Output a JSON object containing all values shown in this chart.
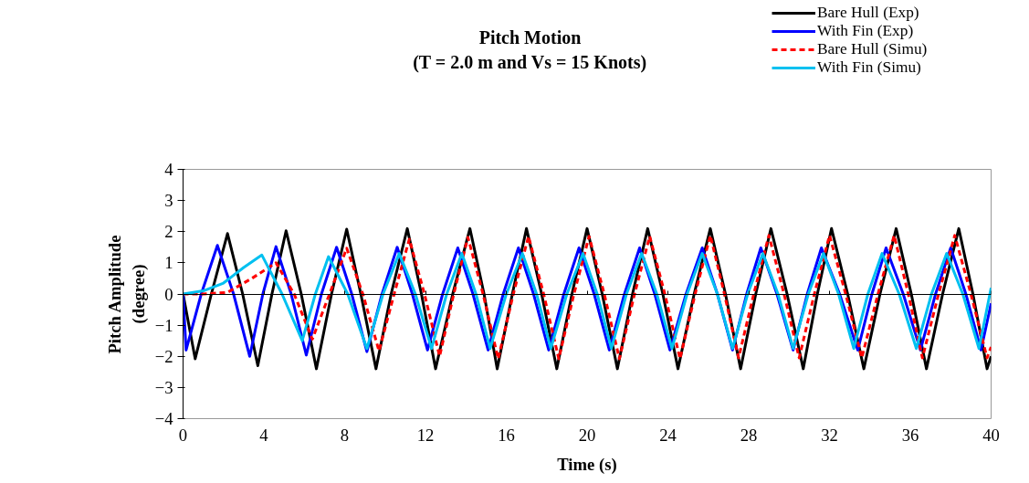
{
  "chart_data": {
    "type": "line",
    "title": "Pitch Motion",
    "subtitle": "(T = 2.0 m and Vs = 15 Knots)",
    "xlabel": "Time (s)",
    "ylabel": "Pitch Amplitude (degree)",
    "xlim": [
      0,
      40
    ],
    "xticks": [
      0,
      4,
      8,
      12,
      16,
      20,
      24,
      28,
      32,
      36,
      40
    ],
    "ylim": [
      -4,
      4
    ],
    "yticks": [
      -4,
      -3,
      -2,
      -1,
      0,
      1,
      2,
      3,
      4
    ],
    "legend": "top right",
    "line_style": "solid",
    "marker": "none",
    "series": [
      {
        "name": "Bare Hull (Exp)",
        "color": "#000000",
        "x": [
          0,
          0.6,
          1.4,
          2.2,
          2.95,
          3.7,
          4.4,
          5.1,
          5.85,
          6.6,
          7.35,
          8.1,
          8.8,
          9.55,
          10.3,
          11.1,
          11.8,
          12.5,
          13.35,
          14.2,
          14.9,
          15.55,
          16.3,
          17.0,
          17.75,
          18.5,
          19.25,
          20.0,
          20.75,
          21.5,
          22.25,
          23.0,
          23.75,
          24.5,
          25.3,
          26.1,
          26.85,
          27.6,
          28.35,
          29.1,
          29.9,
          30.7,
          31.4,
          32.1,
          32.9,
          33.7,
          34.5,
          35.3,
          36.05,
          36.8,
          37.6,
          38.4,
          39.1,
          39.8,
          40
        ],
        "values": [
          0,
          -2.08,
          0,
          1.94,
          0,
          -2.3,
          0,
          2.03,
          0,
          -2.4,
          0,
          2.08,
          0,
          -2.4,
          0,
          2.1,
          0,
          -2.4,
          0,
          2.1,
          0,
          -2.4,
          0,
          2.1,
          0,
          -2.4,
          0,
          2.1,
          0,
          -2.4,
          0,
          2.1,
          0,
          -2.4,
          0,
          2.1,
          0,
          -2.4,
          0,
          2.1,
          0,
          -2.4,
          0,
          2.1,
          0,
          -2.4,
          0,
          2.1,
          0,
          -2.4,
          0,
          2.1,
          0,
          -2.4,
          -2.0
        ]
      },
      {
        "name": "With Fin (Exp)",
        "color": "#0000ff",
        "x": [
          0,
          0.15,
          0.9,
          1.7,
          2.5,
          3.3,
          3.95,
          4.6,
          5.35,
          6.1,
          6.85,
          7.6,
          8.35,
          9.1,
          9.85,
          10.6,
          11.35,
          12.1,
          12.85,
          13.6,
          14.35,
          15.1,
          15.85,
          16.6,
          17.35,
          18.1,
          18.85,
          19.6,
          20.35,
          21.1,
          21.85,
          22.6,
          23.35,
          24.1,
          24.9,
          25.7,
          26.45,
          27.2,
          27.9,
          28.6,
          29.4,
          30.2,
          30.9,
          31.6,
          32.5,
          33.4,
          34.1,
          34.8,
          35.65,
          36.5,
          37.25,
          38.0,
          38.75,
          39.5,
          40
        ],
        "values": [
          0,
          -1.8,
          0,
          1.56,
          0,
          -2.0,
          0,
          1.52,
          0,
          -1.96,
          0,
          1.5,
          0,
          -1.85,
          0,
          1.5,
          0,
          -1.8,
          0,
          1.48,
          0,
          -1.8,
          0,
          1.48,
          0,
          -1.8,
          0,
          1.48,
          0,
          -1.8,
          0,
          1.48,
          0,
          -1.8,
          0,
          1.48,
          0,
          -1.8,
          0,
          1.48,
          0,
          -1.8,
          0,
          1.48,
          0,
          -1.8,
          0,
          1.48,
          0,
          -1.8,
          0,
          1.48,
          0,
          -1.8,
          -0.3
        ],
        "line_style": "solid"
      },
      {
        "name": "Bare Hull (Simu)",
        "color": "#ff0000",
        "line_style": "dashed",
        "x": [
          0,
          1,
          2.2,
          3.4,
          4.6,
          5.5,
          6.4,
          7.25,
          8.1,
          8.9,
          9.7,
          10.45,
          11.2,
          11.95,
          12.7,
          13.4,
          14.1,
          14.85,
          15.6,
          16.35,
          17.1,
          17.85,
          18.6,
          19.35,
          20.1,
          20.85,
          21.6,
          22.35,
          23.1,
          23.85,
          24.6,
          25.35,
          26.1,
          26.8,
          27.5,
          28.25,
          29.0,
          29.75,
          30.5,
          31.25,
          32.0,
          32.8,
          33.6,
          34.4,
          35.2,
          35.9,
          36.6,
          37.4,
          38.2,
          39.0,
          39.8,
          40
        ],
        "values": [
          0,
          0,
          0.05,
          0.5,
          1.0,
          0,
          -1.45,
          0,
          1.47,
          0,
          -1.83,
          0,
          1.76,
          0,
          -2.0,
          0,
          1.82,
          0,
          -2.08,
          0,
          1.85,
          0,
          -2.08,
          0,
          1.85,
          0,
          -2.08,
          0,
          1.85,
          0,
          -2.08,
          0,
          1.88,
          0,
          -2.05,
          0,
          1.88,
          0,
          -2.05,
          0,
          1.88,
          0,
          -2.05,
          0,
          1.88,
          0,
          -2.05,
          0,
          1.88,
          0,
          -2.05,
          -1.7
        ]
      },
      {
        "name": "With Fin (Simu)",
        "color": "#00c0f0",
        "x": [
          0,
          1,
          2,
          3,
          3.9,
          4.9,
          5.9,
          6.55,
          7.2,
          8.15,
          9.1,
          9.9,
          10.7,
          11.5,
          12.3,
          13.05,
          13.8,
          14.5,
          15.2,
          16.0,
          16.8,
          17.5,
          18.2,
          19.0,
          19.8,
          20.5,
          21.2,
          21.95,
          22.7,
          23.45,
          24.2,
          24.95,
          25.7,
          26.45,
          27.2,
          27.95,
          28.7,
          29.45,
          30.2,
          30.95,
          31.7,
          32.45,
          33.2,
          33.9,
          34.6,
          35.45,
          36.3,
          37.05,
          37.8,
          38.6,
          39.4,
          40
        ],
        "values": [
          0,
          0.1,
          0.35,
          0.85,
          1.25,
          0,
          -1.5,
          0,
          1.2,
          0,
          -1.75,
          0,
          1.3,
          0,
          -1.75,
          0,
          1.3,
          0,
          -1.75,
          0,
          1.3,
          0,
          -1.75,
          0,
          1.3,
          0,
          -1.75,
          0,
          1.3,
          0,
          -1.75,
          0,
          1.3,
          0,
          -1.75,
          0,
          1.3,
          0,
          -1.75,
          0,
          1.3,
          0,
          -1.75,
          0,
          1.3,
          0,
          -1.75,
          0,
          1.3,
          0,
          -1.75,
          0.2
        ]
      }
    ]
  }
}
